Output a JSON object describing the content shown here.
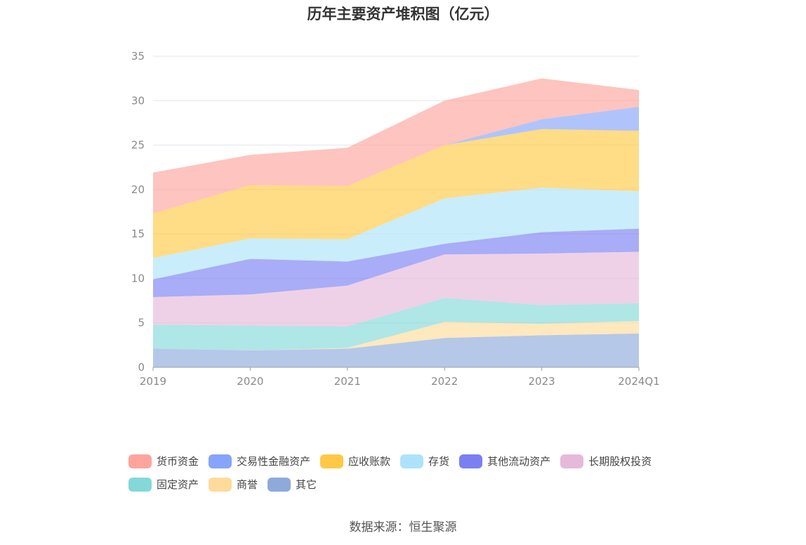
{
  "chart_data": {
    "type": "area",
    "stacked": true,
    "title": "历年主要资产堆积图（亿元）",
    "categories": [
      "2019",
      "2020",
      "2021",
      "2022",
      "2023",
      "2024Q1"
    ],
    "ylim": [
      0,
      35
    ],
    "yticks": [
      0,
      5,
      10,
      15,
      20,
      25,
      30,
      35
    ],
    "grid": true,
    "legend_position": "bottom",
    "series": [
      {
        "name": "其它",
        "color": "#8eaadb",
        "values": [
          2.1,
          1.9,
          2.1,
          3.3,
          3.6,
          3.8
        ]
      },
      {
        "name": "商誉",
        "color": "#fedb9b",
        "values": [
          0.0,
          0.0,
          0.1,
          1.8,
          1.3,
          1.4
        ]
      },
      {
        "name": "固定资产",
        "color": "#84d8d8",
        "values": [
          2.7,
          2.8,
          2.4,
          2.7,
          2.1,
          2.0
        ]
      },
      {
        "name": "长期股权投资",
        "color": "#e6b9da",
        "values": [
          3.1,
          3.5,
          4.6,
          4.9,
          5.8,
          5.8
        ]
      },
      {
        "name": "其他流动资产",
        "color": "#7b7ff2",
        "values": [
          2.0,
          4.0,
          2.7,
          1.2,
          2.4,
          2.6
        ]
      },
      {
        "name": "存货",
        "color": "#ade3fa",
        "values": [
          2.4,
          2.3,
          2.5,
          5.1,
          5.0,
          4.2
        ]
      },
      {
        "name": "应收账款",
        "color": "#ffc945",
        "values": [
          5.0,
          6.0,
          6.0,
          6.0,
          6.6,
          6.8
        ]
      },
      {
        "name": "交易性金融资产",
        "color": "#86a4f9",
        "values": [
          0.0,
          0.0,
          0.0,
          0.0,
          1.1,
          2.7
        ]
      },
      {
        "name": "货币资金",
        "color": "#fda59d",
        "values": [
          4.6,
          3.4,
          4.3,
          5.0,
          4.6,
          1.9
        ]
      }
    ]
  },
  "legend_rows": [
    [
      "货币资金",
      "交易性金融资产",
      "应收账款",
      "存货",
      "其他流动资产",
      "长期股权投资"
    ],
    [
      "固定资产",
      "商誉",
      "其它"
    ]
  ],
  "source": "数据来源：恒生聚源"
}
